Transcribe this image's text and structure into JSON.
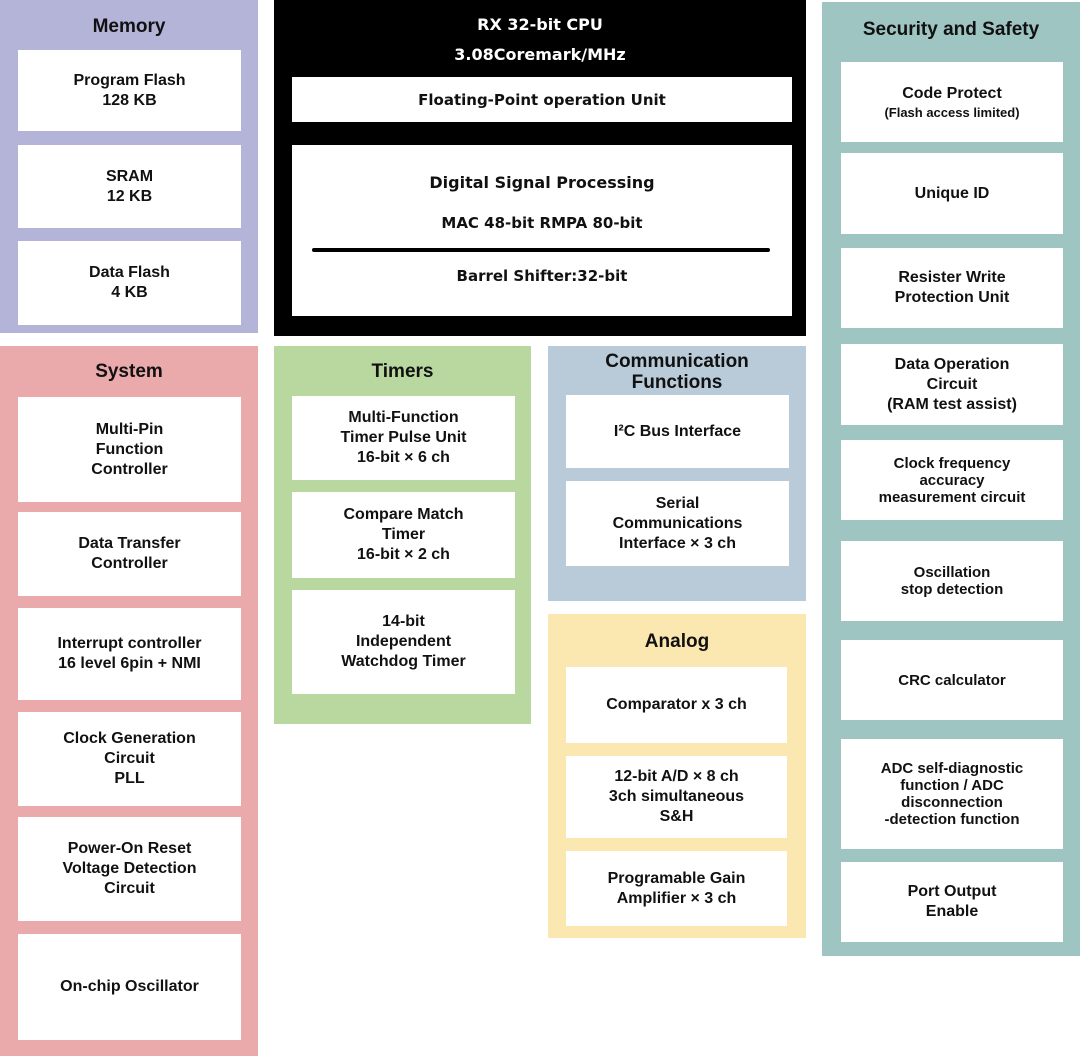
{
  "colors": {
    "memory": "#b4b4d9",
    "cpu": "#000000",
    "security": "#9ec5c1",
    "system": "#eaa9aa",
    "timers": "#b9d89f",
    "communication": "#b9cad9",
    "analog": "#fbe7b0"
  },
  "memory": {
    "title": "Memory",
    "blocks": [
      [
        "Program Flash",
        "128 KB"
      ],
      [
        "SRAM",
        "12 KB"
      ],
      [
        "Data Flash",
        "4 KB"
      ]
    ]
  },
  "cpu": {
    "title": "RX 32-bit CPU",
    "subtitle": "3.08Coremark/MHz",
    "fpu": "Floating-Point operation Unit",
    "dsp": {
      "title": "Digital Signal Processing",
      "mac": "MAC 48-bit  RMPA 80-bit",
      "shifter": "Barrel Shifter:32-bit"
    }
  },
  "security": {
    "title": "Security and Safety",
    "blocks": [
      [
        "Code Protect",
        "(Flash access limited)"
      ],
      [
        "Unique ID"
      ],
      [
        "Resister Write",
        "Protection Unit"
      ],
      [
        "Data Operation",
        "Circuit",
        "(RAM test assist)"
      ],
      [
        "Clock frequency",
        "accuracy",
        "measurement circuit"
      ],
      [
        "Oscillation",
        "stop detection"
      ],
      [
        "CRC calculator"
      ],
      [
        "ADC self-diagnostic",
        "function / ADC",
        "disconnection",
        "-detection function"
      ],
      [
        "Port Output",
        "Enable"
      ]
    ]
  },
  "system": {
    "title": "System",
    "blocks": [
      [
        "Multi-Pin",
        "Function",
        "Controller"
      ],
      [
        "Data Transfer",
        "Controller"
      ],
      [
        "Interrupt controller",
        "16 level 6pin + NMI"
      ],
      [
        "Clock Generation",
        "Circuit",
        "PLL"
      ],
      [
        "Power-On Reset",
        "Voltage Detection",
        "Circuit"
      ],
      [
        "On-chip Oscillator"
      ]
    ]
  },
  "timers": {
    "title": "Timers",
    "blocks": [
      [
        "Multi-Function",
        "Timer Pulse Unit",
        "16-bit × 6 ch"
      ],
      [
        "Compare Match",
        "Timer",
        "16-bit × 2 ch"
      ],
      [
        "14-bit",
        "Independent",
        "Watchdog Timer"
      ]
    ]
  },
  "communication": {
    "title": "Communication Functions",
    "blocks": [
      [
        "I²C  Bus Interface"
      ],
      [
        "Serial",
        "Communications",
        "Interface × 3 ch"
      ]
    ]
  },
  "analog": {
    "title": "Analog",
    "blocks": [
      [
        "Comparator x 3 ch"
      ],
      [
        "12-bit A/D × 8 ch",
        "3ch simultaneous",
        "S&H"
      ],
      [
        "Programable Gain",
        "Amplifier × 3 ch"
      ]
    ]
  }
}
